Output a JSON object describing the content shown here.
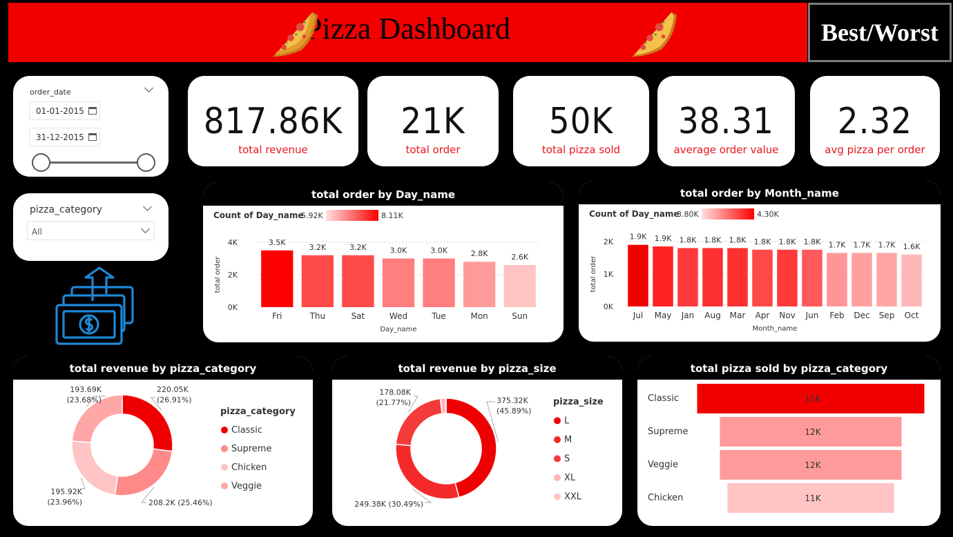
{
  "header": {
    "title": "Pizza Dashboard",
    "best_worst": "Best/Worst"
  },
  "slicers": {
    "date": {
      "label": "order_date",
      "start": "01-01-2015",
      "end": "31-12-2015"
    },
    "category": {
      "label": "pizza_category",
      "selected": "All"
    }
  },
  "kpis": [
    {
      "value": "817.86K",
      "label": "total revenue"
    },
    {
      "value": "21K",
      "label": "total order"
    },
    {
      "value": "50K",
      "label": "total pizza sold"
    },
    {
      "value": "38.31",
      "label": "average order value"
    },
    {
      "value": "2.32",
      "label": "avg pizza per order"
    }
  ],
  "icons": {
    "pizza": "pizza-slice-icon",
    "money": "money-up-icon",
    "calendar": "calendar-icon",
    "chevron": "chevron-down-icon"
  },
  "colors": {
    "accent": "#f20000",
    "label_red": "#e8141b",
    "dark_red": "#ff0000",
    "light_red": "#ffc4c4"
  },
  "chart_data": [
    {
      "type": "bar",
      "title": "total order by Day_name",
      "xlabel": "Day_name",
      "ylabel": "total order",
      "legend_title": "Count of Day_name",
      "legend_min": "5.92K",
      "legend_max": "8.11K",
      "categories": [
        "Fri",
        "Thu",
        "Sat",
        "Wed",
        "Tue",
        "Mon",
        "Sun"
      ],
      "values": [
        3500,
        3200,
        3200,
        3000,
        3000,
        2800,
        2600
      ],
      "labels": [
        "3.5K",
        "3.2K",
        "3.2K",
        "3.0K",
        "3.0K",
        "2.8K",
        "2.6K"
      ],
      "colors": [
        "#ff0000",
        "#ff4a4a",
        "#ff4a4a",
        "#ff7e7e",
        "#ff7e7e",
        "#ff9a9a",
        "#ffc4c4"
      ],
      "yticks": [
        "0K",
        "2K",
        "4K"
      ],
      "ylim": [
        0,
        4000
      ]
    },
    {
      "type": "bar",
      "title": "total order by Month_name",
      "xlabel": "Month_name",
      "ylabel": "total order",
      "legend_title": "Count of Day_name",
      "legend_min": "3.80K",
      "legend_max": "4.30K",
      "categories": [
        "Jul",
        "May",
        "Jan",
        "Aug",
        "Mar",
        "Apr",
        "Nov",
        "Jun",
        "Feb",
        "Dec",
        "Sep",
        "Oct"
      ],
      "values": [
        1900,
        1850,
        1800,
        1800,
        1800,
        1750,
        1750,
        1750,
        1650,
        1650,
        1650,
        1600
      ],
      "labels": [
        "1.9K",
        "1.9K",
        "1.8K",
        "1.8K",
        "1.8K",
        "1.8K",
        "1.8K",
        "1.8K",
        "1.7K",
        "1.7K",
        "1.7K",
        "1.6K"
      ],
      "colors": [
        "#f20000",
        "#ff2222",
        "#ff3a3a",
        "#ff3030",
        "#ff3030",
        "#ff4848",
        "#ff3a3a",
        "#ff5a5a",
        "#ff9696",
        "#ffa0a0",
        "#ffa6a6",
        "#ffb8b8"
      ],
      "yticks": [
        "0K",
        "1K",
        "2K"
      ],
      "ylim": [
        0,
        2000
      ]
    },
    {
      "type": "pie",
      "title": "total revenue by pizza_category",
      "legend_title": "pizza_category",
      "categories": [
        "Classic",
        "Supreme",
        "Chicken",
        "Veggie"
      ],
      "values": [
        220.05,
        208.2,
        195.92,
        193.69
      ],
      "labels": [
        "220.05K (26.91%)",
        "208.2K (25.46%)",
        "195.92K (23.96%)",
        "193.69K (23.68%)"
      ],
      "colors": [
        "#ef0000",
        "#ff8a8a",
        "#ffc4c4",
        "#ffa6a6"
      ]
    },
    {
      "type": "pie",
      "title": "total revenue by pizza_size",
      "legend_title": "pizza_size",
      "categories": [
        "L",
        "M",
        "S",
        "XL",
        "XXL"
      ],
      "values": [
        375.32,
        249.38,
        178.08,
        14.08,
        1.01
      ],
      "labels": [
        "375.32K (45.89%)",
        "249.38K (30.49%)",
        "178.08K (21.77%)",
        "",
        ""
      ],
      "colors": [
        "#ef0000",
        "#f42a2a",
        "#f53a3a",
        "#ffb6b6",
        "#ffc8c8"
      ]
    },
    {
      "type": "bar",
      "title": "total pizza sold by pizza_category",
      "categories": [
        "Classic",
        "Supreme",
        "Veggie",
        "Chicken"
      ],
      "values": [
        15000,
        12000,
        12000,
        11000
      ],
      "labels": [
        "15K",
        "12K",
        "12K",
        "11K"
      ],
      "colors": [
        "#f20000",
        "#ff9a9a",
        "#ff9a9a",
        "#ffc4c4"
      ],
      "xlim": [
        0,
        15000
      ]
    }
  ]
}
